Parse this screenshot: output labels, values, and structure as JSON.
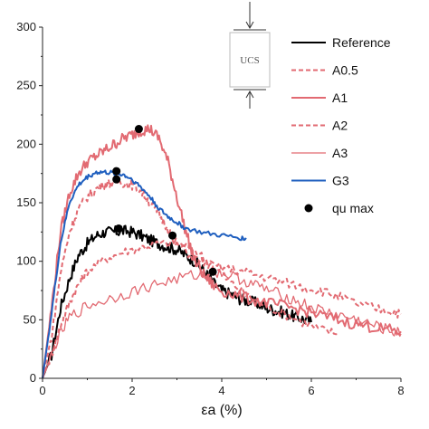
{
  "chart_data": {
    "type": "line",
    "title": "",
    "xlabel": "εa (%)",
    "ylabel": "",
    "xlim": [
      0,
      8
    ],
    "ylim": [
      0,
      300
    ],
    "xticks": [
      0,
      2,
      4,
      6,
      8
    ],
    "yticks": [
      0,
      50,
      100,
      150,
      200,
      250,
      300
    ],
    "grid": false,
    "legend_position": "top-right",
    "series": [
      {
        "name": "Reference",
        "color": "#000000",
        "style": "solid",
        "x": [
          0,
          0.2,
          0.4,
          0.6,
          0.8,
          1.0,
          1.2,
          1.4,
          1.6,
          1.8,
          2.0,
          2.2,
          2.4,
          2.6,
          2.8,
          3.0,
          3.2,
          3.4,
          3.6,
          3.8,
          4.0,
          4.2,
          4.4,
          4.6,
          4.8,
          5.0,
          5.2,
          5.4,
          5.6,
          5.8,
          6.0
        ],
        "y": [
          0,
          20,
          60,
          85,
          105,
          115,
          122,
          125,
          125,
          126,
          125,
          122,
          118,
          115,
          112,
          110,
          105,
          100,
          92,
          82,
          75,
          72,
          68,
          66,
          64,
          60,
          58,
          56,
          53,
          51,
          48
        ]
      },
      {
        "name": "A0.5",
        "color": "#e26a72",
        "style": "dashed",
        "x": [
          0,
          0.2,
          0.4,
          0.6,
          0.8,
          1.0,
          1.4,
          1.8,
          2.2,
          2.6,
          3.0,
          3.4,
          3.8,
          4.2,
          4.6,
          5.0,
          5.4,
          5.8,
          6.2,
          6.6
        ],
        "y": [
          0,
          20,
          45,
          65,
          80,
          92,
          102,
          108,
          112,
          115,
          115,
          110,
          96,
          82,
          70,
          62,
          55,
          48,
          42,
          38
        ]
      },
      {
        "name": "A1",
        "color": "#e26a72",
        "style": "solid",
        "x": [
          0,
          0.2,
          0.4,
          0.6,
          0.8,
          1.0,
          1.2,
          1.4,
          1.6,
          1.8,
          2.0,
          2.2,
          2.4,
          2.6,
          2.8,
          3.0,
          3.2,
          3.4,
          3.6,
          3.8,
          4.0,
          4.4,
          4.8,
          5.2,
          5.6,
          6.0,
          6.4,
          6.8,
          7.2,
          7.6,
          8.0
        ],
        "y": [
          0,
          60,
          125,
          158,
          175,
          185,
          190,
          195,
          200,
          205,
          208,
          212,
          213,
          205,
          185,
          155,
          125,
          100,
          88,
          80,
          75,
          70,
          66,
          63,
          60,
          56,
          52,
          48,
          45,
          42,
          40
        ]
      },
      {
        "name": "A2",
        "color": "#e26a72",
        "style": "dashed",
        "x": [
          0,
          0.2,
          0.4,
          0.6,
          0.8,
          1.0,
          1.2,
          1.4,
          1.6,
          1.8,
          2.0,
          2.2,
          2.4,
          2.6,
          2.8,
          3.0,
          3.4,
          3.8,
          4.2,
          4.6,
          5.0,
          5.4,
          5.8,
          6.2,
          6.6,
          7.0,
          7.4,
          7.8,
          8.0
        ],
        "y": [
          0,
          35,
          90,
          125,
          145,
          155,
          162,
          166,
          168,
          167,
          165,
          160,
          150,
          140,
          128,
          115,
          102,
          96,
          93,
          90,
          86,
          82,
          78,
          75,
          70,
          64,
          60,
          57,
          55
        ]
      },
      {
        "name": "A3",
        "color": "#e26a72",
        "style": "solid",
        "x": [
          0,
          0.3,
          0.6,
          1.0,
          1.5,
          2.0,
          2.5,
          3.0,
          3.5,
          3.8,
          4.2,
          4.6,
          5.0,
          5.4,
          5.8,
          6.2,
          6.6,
          7.0,
          7.4,
          7.8,
          8.0
        ],
        "y": [
          0,
          30,
          52,
          62,
          68,
          74,
          80,
          85,
          89,
          92,
          88,
          82,
          76,
          70,
          64,
          58,
          54,
          50,
          45,
          40,
          38
        ]
      },
      {
        "name": "G3",
        "color": "#1f5fbf",
        "style": "solid",
        "x": [
          0,
          0.2,
          0.4,
          0.6,
          0.8,
          1.0,
          1.2,
          1.4,
          1.6,
          1.8,
          2.0,
          2.2,
          2.4,
          2.6,
          2.8,
          3.0,
          3.2,
          3.6,
          4.0,
          4.4,
          4.55
        ],
        "y": [
          0,
          55,
          115,
          150,
          165,
          172,
          176,
          176,
          175,
          174,
          170,
          163,
          155,
          145,
          138,
          133,
          128,
          124,
          122,
          120,
          119
        ]
      }
    ],
    "qu_max": {
      "name": "qu max",
      "color": "#000000",
      "points": [
        {
          "x": 2.15,
          "y": 213
        },
        {
          "x": 1.65,
          "y": 177
        },
        {
          "x": 1.65,
          "y": 170
        },
        {
          "x": 1.7,
          "y": 128
        },
        {
          "x": 2.9,
          "y": 122
        },
        {
          "x": 3.8,
          "y": 91
        }
      ]
    }
  },
  "inset": {
    "label": "UCS"
  },
  "legend": {
    "items": [
      {
        "label": "Reference",
        "color": "#000000",
        "style": "solid"
      },
      {
        "label": "A0.5",
        "color": "#e26a72",
        "style": "dashed"
      },
      {
        "label": "A1",
        "color": "#e26a72",
        "style": "solid"
      },
      {
        "label": "A2",
        "color": "#e26a72",
        "style": "dashed"
      },
      {
        "label": "A3",
        "color": "#e26a72",
        "style": "solid"
      },
      {
        "label": "G3",
        "color": "#1f5fbf",
        "style": "solid"
      },
      {
        "label": "qu max",
        "color": "#000000",
        "style": "marker"
      }
    ]
  }
}
